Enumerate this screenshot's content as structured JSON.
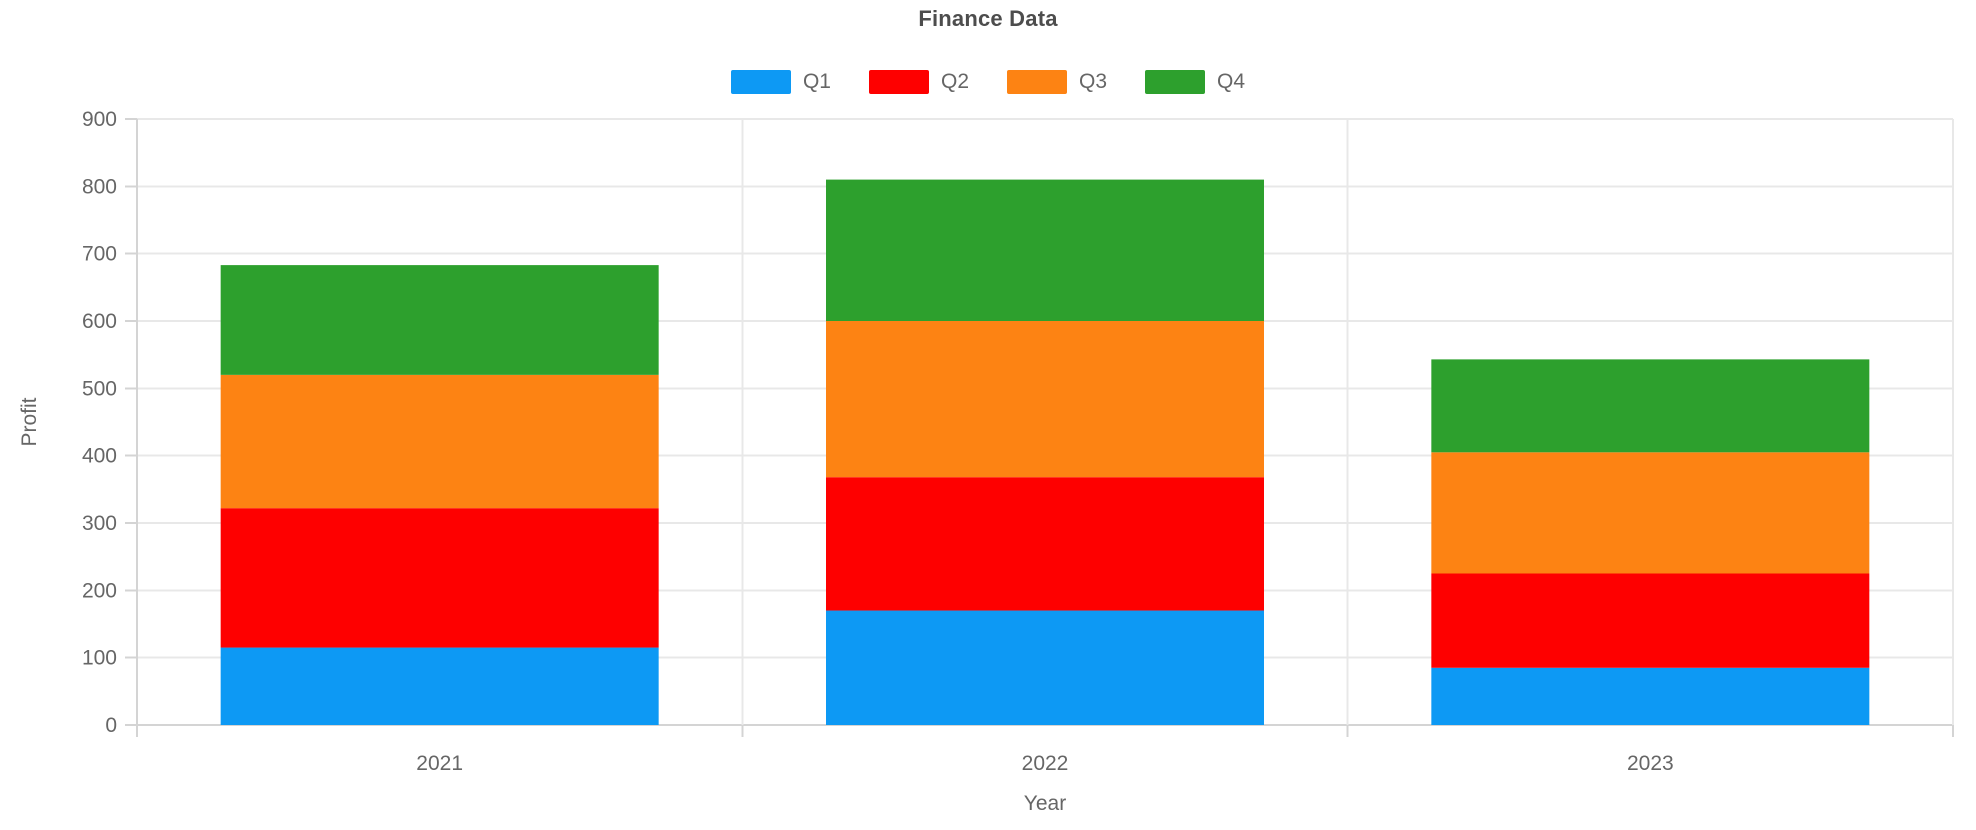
{
  "title": "Finance Data",
  "chart_data": {
    "type": "bar",
    "stacked": true,
    "title": "Finance Data",
    "xlabel": "Year",
    "ylabel": "Profit",
    "categories": [
      "2021",
      "2022",
      "2023"
    ],
    "series": [
      {
        "name": "Q1",
        "color": "#0d99f4",
        "values": [
          115,
          170,
          85
        ]
      },
      {
        "name": "Q2",
        "color": "#fe0000",
        "values": [
          207,
          198,
          140
        ]
      },
      {
        "name": "Q3",
        "color": "#fd8313",
        "values": [
          198,
          232,
          180
        ]
      },
      {
        "name": "Q4",
        "color": "#2da02d",
        "values": [
          163,
          210,
          138
        ]
      }
    ],
    "stack_totals": [
      683,
      810,
      543
    ],
    "ylim": [
      0,
      900
    ],
    "ytick_step": 100,
    "ytick_labels": [
      "0",
      "100",
      "200",
      "300",
      "400",
      "500",
      "600",
      "700",
      "800",
      "900"
    ],
    "grid": true,
    "legend_position": "top",
    "legend_labels": [
      "Q1",
      "Q2",
      "Q3",
      "Q4"
    ]
  },
  "colors": {
    "background": "#ffffff",
    "title_text": "#4d4d4d",
    "axis_text": "#666666",
    "gridline": "#e8e8e8",
    "axis_line": "#d4d4d4"
  }
}
